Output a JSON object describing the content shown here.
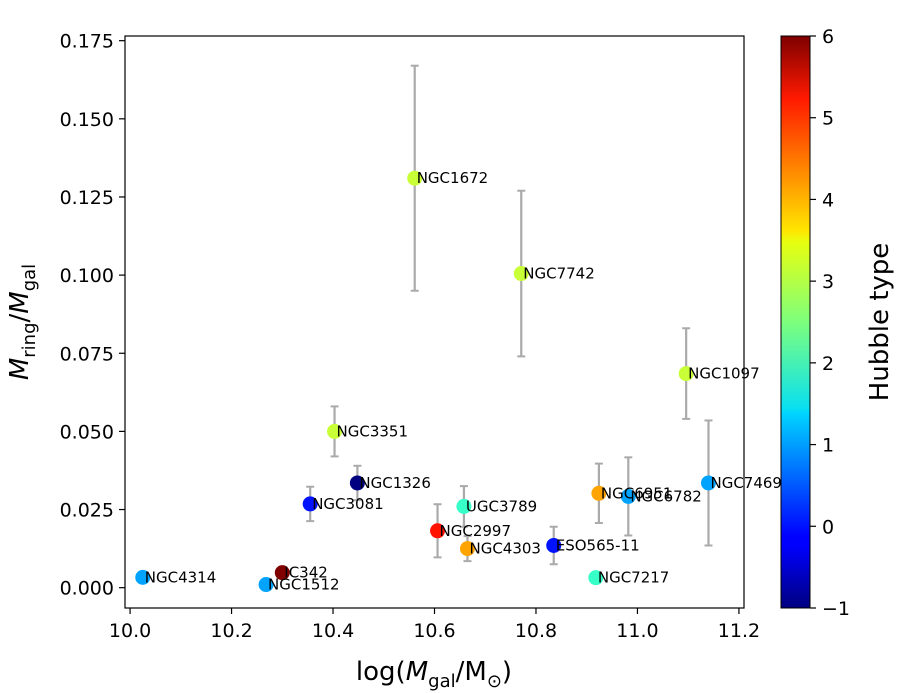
{
  "chart_data": {
    "type": "scatter",
    "title": "",
    "xlabel": "log(M_gal/M_⊙)",
    "ylabel": "M_ring/M_gal",
    "xlim": [
      9.99,
      11.21
    ],
    "ylim": [
      -0.0065,
      0.1765
    ],
    "x_ticks": [
      "10.0",
      "10.2",
      "10.4",
      "10.6",
      "10.8",
      "11.0",
      "11.2"
    ],
    "y_ticks": [
      "0.000",
      "0.025",
      "0.050",
      "0.075",
      "0.100",
      "0.125",
      "0.150",
      "0.175"
    ],
    "colorbar": {
      "label": "Hubble type",
      "min": -1,
      "max": 6,
      "ticks": [
        "−1",
        "0",
        "1",
        "2",
        "3",
        "4",
        "5",
        "6"
      ],
      "colormap": "jet"
    },
    "points": [
      {
        "name": "NGC4314",
        "x": 10.025,
        "y": 0.0033,
        "yerr": 0.0,
        "type": 1
      },
      {
        "name": "NGC1512",
        "x": 10.268,
        "y": 0.001,
        "yerr": 0.0,
        "type": 1
      },
      {
        "name": "IC342",
        "x": 10.3,
        "y": 0.0048,
        "yerr": 0.0,
        "type": 6
      },
      {
        "name": "NGC3081",
        "x": 10.355,
        "y": 0.0268,
        "yerr": 0.0055,
        "type": 0
      },
      {
        "name": "NGC3351",
        "x": 10.403,
        "y": 0.05,
        "yerr": 0.008,
        "type": 3
      },
      {
        "name": "NGC1326",
        "x": 10.448,
        "y": 0.0335,
        "yerr": 0.0055,
        "type": -1
      },
      {
        "name": "NGC1672",
        "x": 10.561,
        "y": 0.131,
        "yerr": 0.036,
        "type": 3
      },
      {
        "name": "NGC2997",
        "x": 10.606,
        "y": 0.0182,
        "yerr": 0.0085,
        "type": 5
      },
      {
        "name": "UGC3789",
        "x": 10.658,
        "y": 0.026,
        "yerr": 0.0065,
        "type": 2
      },
      {
        "name": "NGC4303",
        "x": 10.665,
        "y": 0.0125,
        "yerr": 0.004,
        "type": 4
      },
      {
        "name": "NGC7742",
        "x": 10.771,
        "y": 0.1005,
        "yerr": 0.0265,
        "type": 3
      },
      {
        "name": "ESO565-11",
        "x": 10.835,
        "y": 0.0135,
        "yerr": 0.006,
        "type": 0
      },
      {
        "name": "NGC7217",
        "x": 10.918,
        "y": 0.0032,
        "yerr": 0.0015,
        "type": 2
      },
      {
        "name": "NGC6951",
        "x": 10.924,
        "y": 0.0302,
        "yerr": 0.0095,
        "type": 4
      },
      {
        "name": "NGC6782",
        "x": 10.982,
        "y": 0.0292,
        "yerr": 0.0125,
        "type": 1
      },
      {
        "name": "NGC1097",
        "x": 11.096,
        "y": 0.0685,
        "yerr": 0.0145,
        "type": 3
      },
      {
        "name": "NGC7469",
        "x": 11.14,
        "y": 0.0335,
        "yerr": 0.02,
        "type": 1
      }
    ]
  }
}
